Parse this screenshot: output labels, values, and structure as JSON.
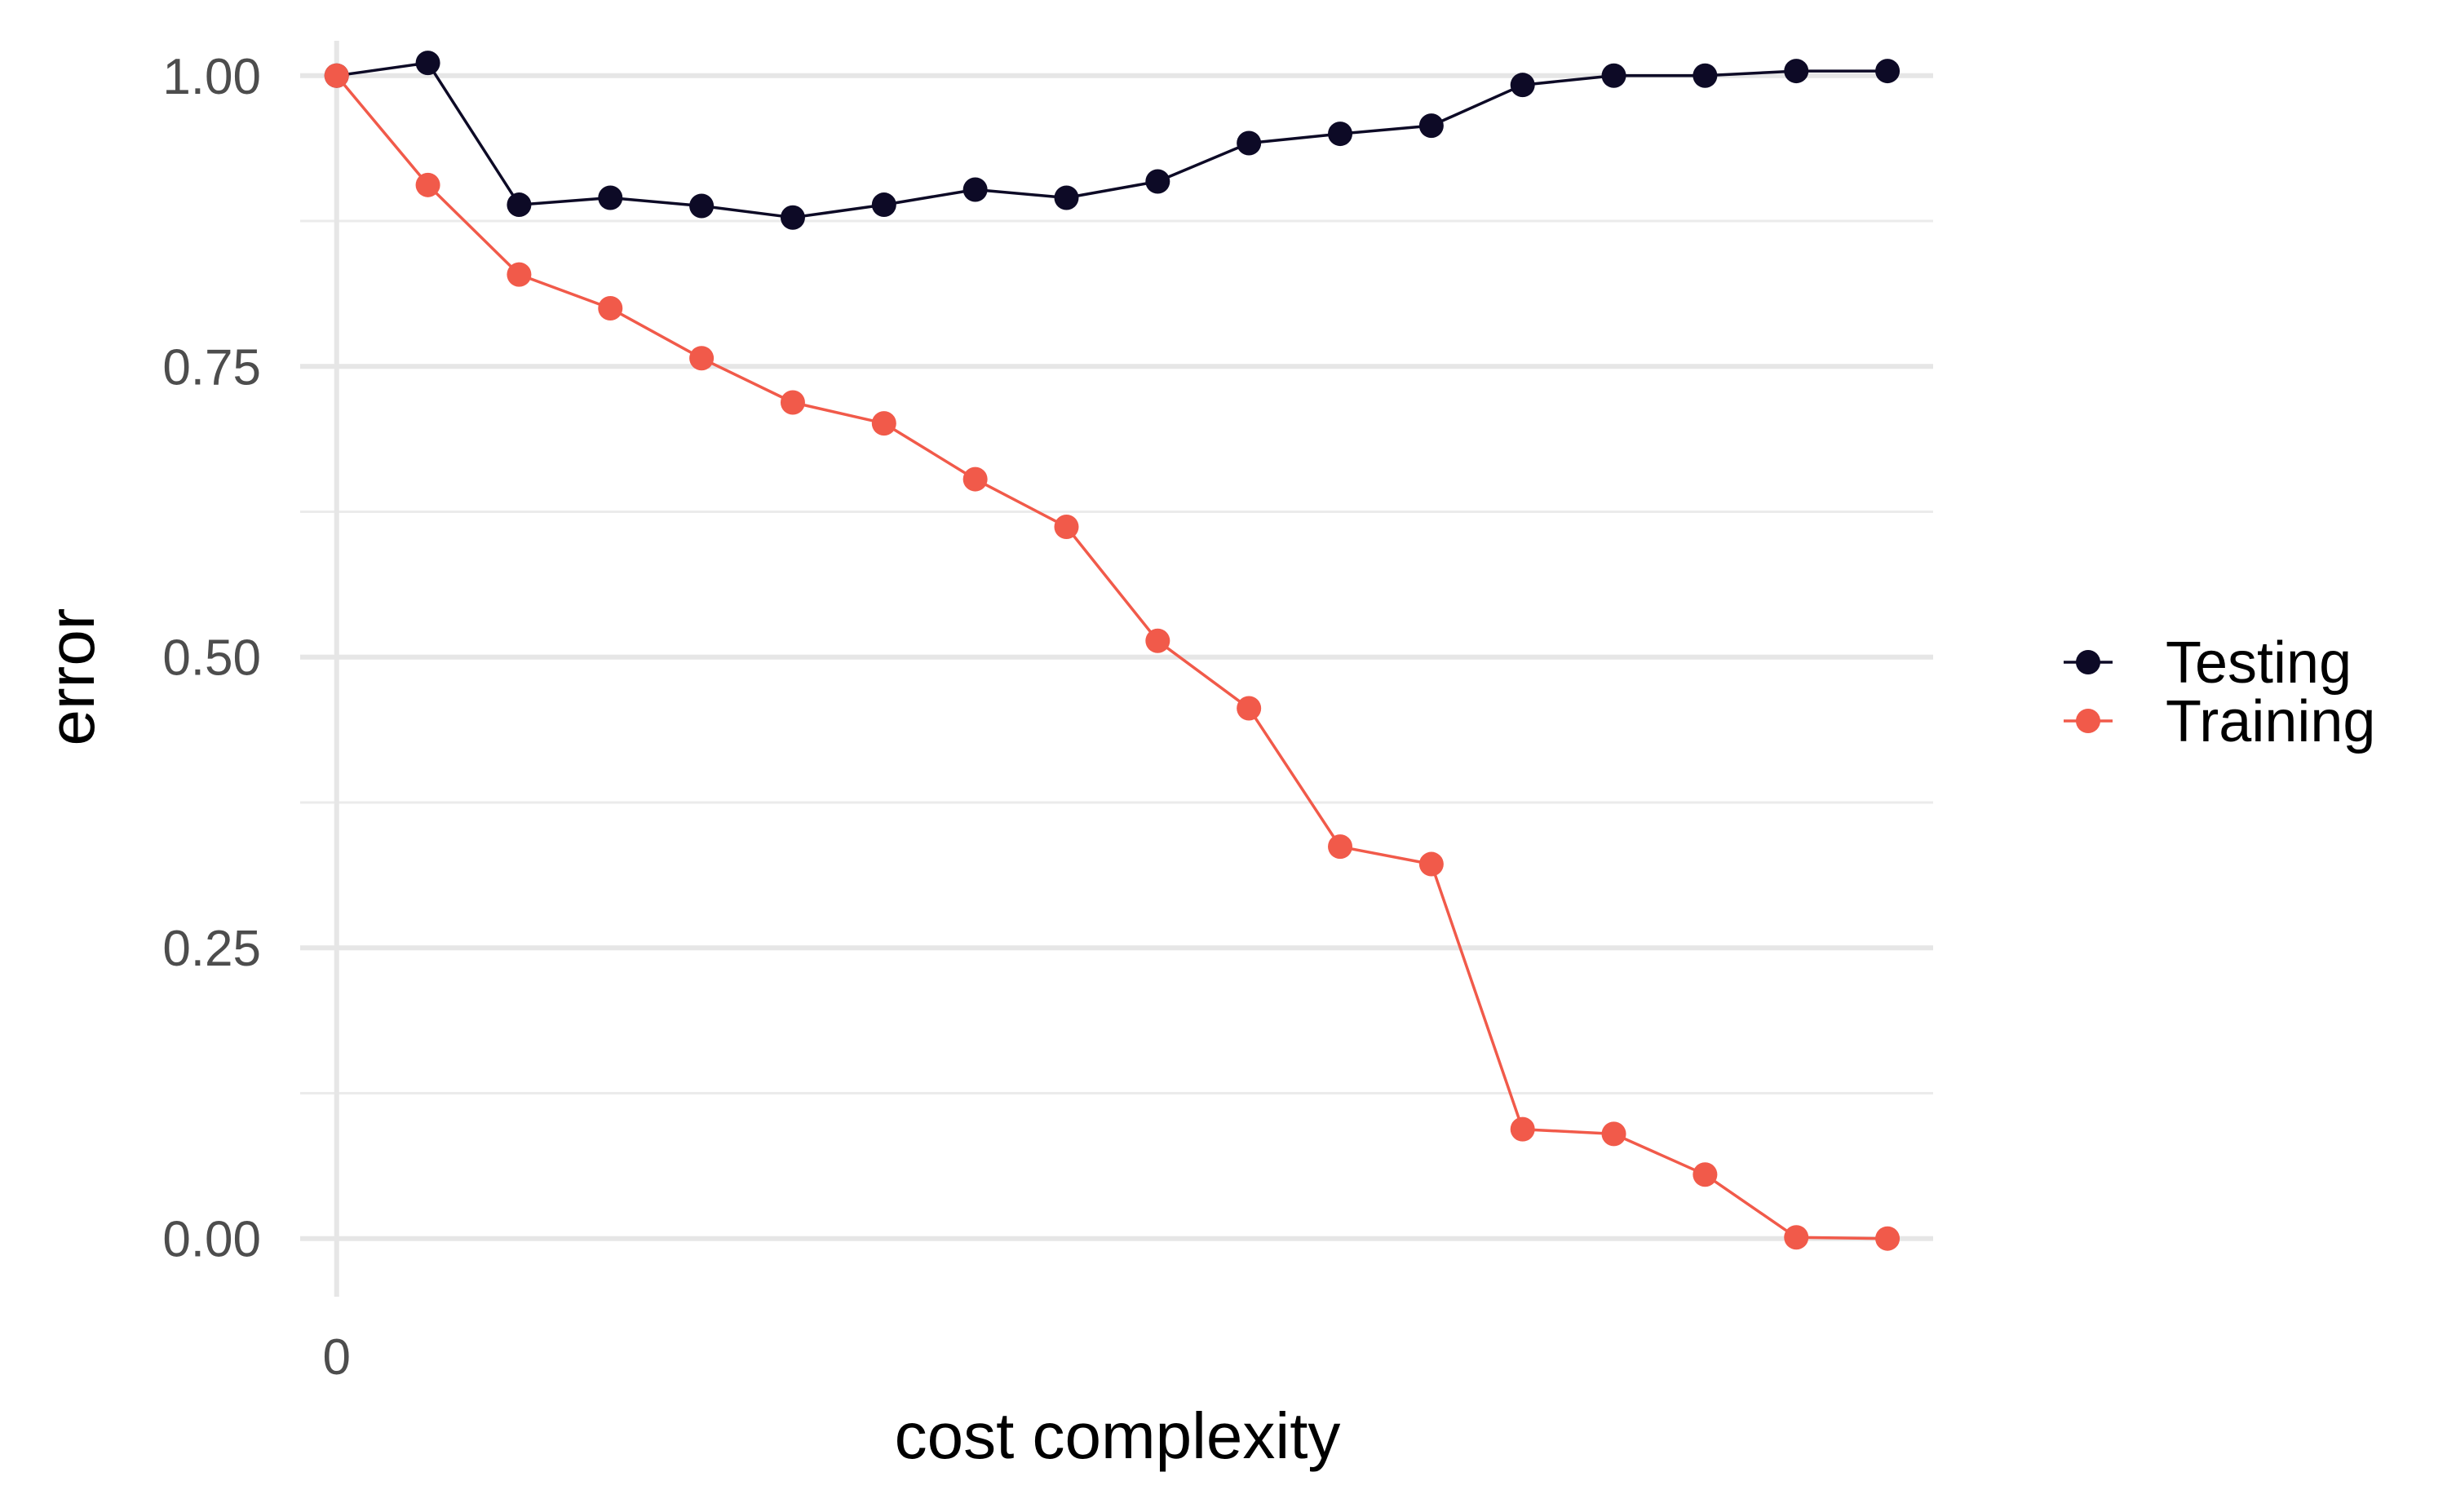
{
  "chart_data": {
    "type": "line",
    "title": "",
    "xlabel": "cost complexity",
    "ylabel": "error",
    "x_tick_labels": [
      "0"
    ],
    "y_ticks": [
      0.0,
      0.25,
      0.5,
      0.75,
      1.0
    ],
    "y_tick_labels": [
      "0.00",
      "0.25",
      "0.50",
      "0.75",
      "1.00"
    ],
    "ylim": [
      -0.05,
      1.03
    ],
    "xlim": [
      -0.4,
      17.5
    ],
    "grid": true,
    "legend_position": "right",
    "x": [
      0,
      1,
      2,
      3,
      4,
      5,
      6,
      7,
      8,
      9,
      10,
      11,
      12,
      13,
      14,
      15,
      16,
      17
    ],
    "series": [
      {
        "name": "Testing",
        "color": "#0d0a26",
        "values": [
          1.0,
          1.011,
          0.889,
          0.895,
          0.888,
          0.878,
          0.889,
          0.902,
          0.895,
          0.909,
          0.942,
          0.95,
          0.957,
          0.992,
          1.0,
          1.0,
          1.004,
          1.004
        ]
      },
      {
        "name": "Training",
        "color": "#f15a4a",
        "values": [
          1.0,
          0.906,
          0.829,
          0.8,
          0.757,
          0.719,
          0.701,
          0.653,
          0.612,
          0.514,
          0.456,
          0.337,
          0.322,
          0.094,
          0.09,
          0.055,
          0.001,
          0.0
        ]
      }
    ]
  }
}
